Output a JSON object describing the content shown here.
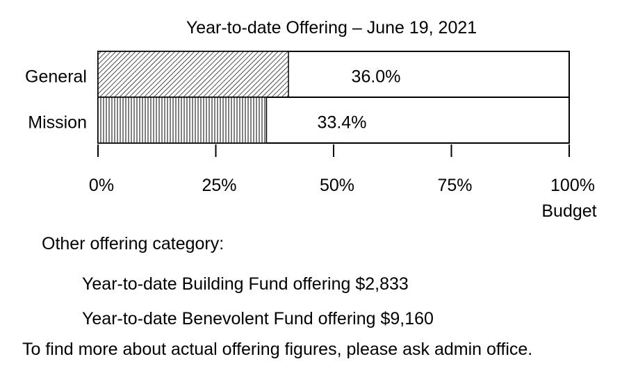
{
  "chart_data": {
    "type": "bar",
    "orientation": "horizontal",
    "title": "Year-to-date Offering – June 19, 2021",
    "categories": [
      "General",
      "Mission"
    ],
    "values": [
      36.0,
      33.4
    ],
    "value_labels": [
      "36.0%",
      "33.4%"
    ],
    "xlim": [
      0,
      100
    ],
    "xticks": [
      0,
      25,
      50,
      75,
      100
    ],
    "xtick_labels": [
      "0%",
      "25%",
      "50%",
      "75%",
      "100%"
    ],
    "xlabel": "Budget",
    "ylabel": "",
    "patterns": [
      "diagonal-hatch",
      "vertical-hatch"
    ],
    "colors": {
      "fill_background": "#ffffff",
      "hatch": "#000000",
      "outline": "#000000"
    }
  },
  "notes": {
    "heading": "Other offering category:",
    "items": [
      "Year-to-date Building Fund offering $2,833",
      "Year-to-date Benevolent Fund offering $9,160"
    ],
    "footer": "To find more about actual offering figures, please ask admin office."
  }
}
